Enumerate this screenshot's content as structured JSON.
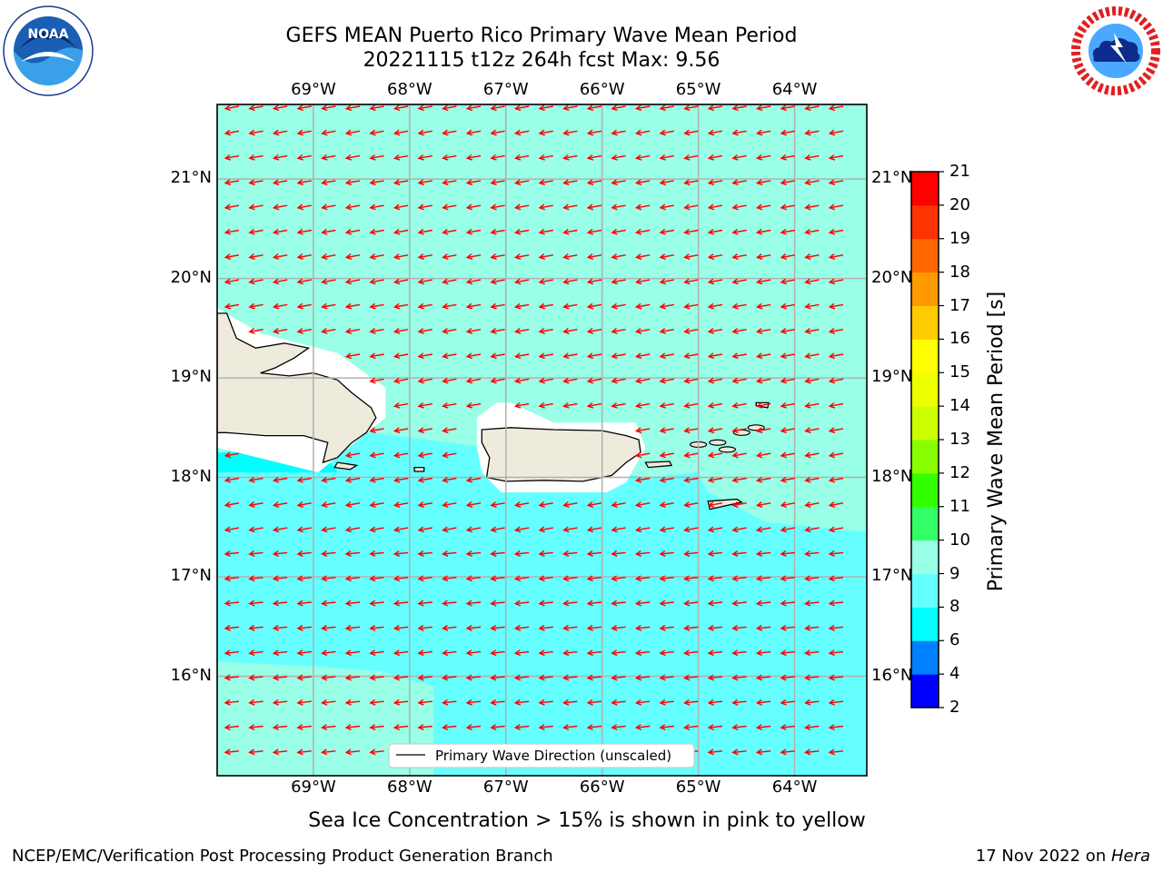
{
  "header": {
    "title_line1": "GEFS MEAN Puerto Rico Primary Wave Mean Period",
    "title_line2": "20221115 t12z 264h fcst   Max: 9.56"
  },
  "logos": {
    "left": "noaa-logo",
    "left_text": "NOAA",
    "left_ring_text": "NATIONAL OCEANIC AND ATMOSPHERIC ADMINISTRATION",
    "left_bottom_text": "U.S. DEPARTMENT OF COMMERCE",
    "right": "nws-logo",
    "right_ring_text": "NATIONAL WEATHER SERVICE"
  },
  "map": {
    "lon_labels": [
      "69°W",
      "68°W",
      "67°W",
      "66°W",
      "65°W",
      "64°W"
    ],
    "lat_labels": [
      "21°N",
      "20°N",
      "19°N",
      "18°N",
      "17°N",
      "16°N"
    ],
    "lon_values": [
      -69,
      -68,
      -67,
      -66,
      -65,
      -64
    ],
    "lat_values": [
      21,
      20,
      19,
      18,
      17,
      16
    ],
    "lon_range": [
      -70.0,
      -63.25
    ],
    "lat_range": [
      15.0,
      21.75
    ],
    "legend_label": "Primary Wave Direction (unscaled)",
    "arrow_color": "#ff0000",
    "land_color": "#efebdc",
    "sea_colors": {
      "8-9": "#66ffff",
      "9-10": "#99ffe6"
    }
  },
  "colorbar": {
    "title": "Primary Wave Mean Period [s]",
    "ticks": [
      "21",
      "20",
      "19",
      "18",
      "17",
      "16",
      "15",
      "14",
      "13",
      "12",
      "11",
      "10",
      "9",
      "8",
      "6",
      "4",
      "2"
    ],
    "levels": [
      2,
      4,
      6,
      8,
      9,
      10,
      11,
      12,
      13,
      14,
      15,
      16,
      17,
      18,
      19,
      20,
      21
    ],
    "colors": [
      "#0000ff",
      "#0080ff",
      "#00ffff",
      "#66ffff",
      "#99ffe6",
      "#33ff66",
      "#33ff00",
      "#88ff00",
      "#ccff00",
      "#eeff00",
      "#ffff00",
      "#ffcc00",
      "#ff9900",
      "#ff6600",
      "#ff3300",
      "#ff0000"
    ]
  },
  "notes": {
    "sea_ice": "Sea Ice Concentration > 15% is shown in pink to yellow"
  },
  "footer": {
    "left": "NCEP/EMC/Verification Post Processing Product Generation Branch",
    "date": "17 Nov 2022 on ",
    "machine": "Hera"
  }
}
